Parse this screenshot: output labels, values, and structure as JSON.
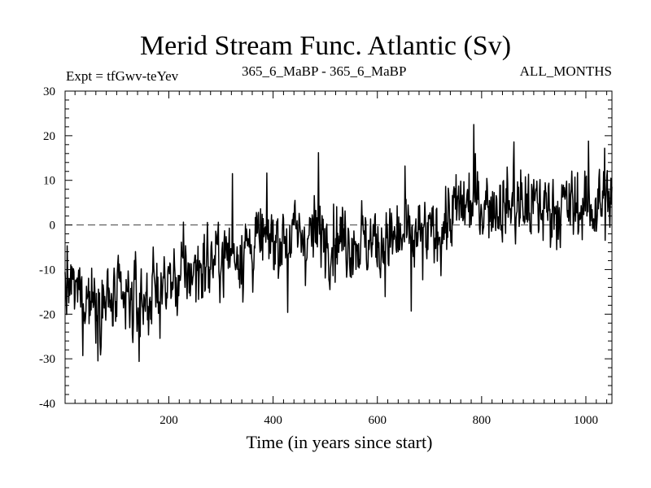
{
  "chart_data": {
    "type": "line",
    "title": "Merid Stream Func. Atlantic (Sv)",
    "subtitle_left": "Expt = tfGwv-teYev",
    "subtitle_center": "365_6_MaBP - 365_6_MaBP",
    "subtitle_right": "ALL_MONTHS",
    "xlabel": "Time (in years since start)",
    "ylabel": "",
    "xlim": [
      1,
      1050
    ],
    "ylim": [
      -40,
      30
    ],
    "xticks": [
      200,
      400,
      600,
      800,
      1000
    ],
    "yticks": [
      30,
      20,
      10,
      0,
      -10,
      -20,
      -30,
      -40
    ],
    "reference_line": {
      "y": 0,
      "style": "dashed"
    },
    "series": [
      {
        "name": "Merid Stream Func. Atlantic",
        "trend_x": [
          1,
          100,
          150,
          200,
          300,
          400,
          500,
          600,
          700,
          760,
          800,
          900,
          1000,
          1050
        ],
        "trend_y": [
          -14,
          -18,
          -17,
          -13,
          -7,
          -3,
          -2,
          -4,
          -3,
          4,
          5,
          4,
          4,
          5
        ],
        "noise_sd": 4.3,
        "n_points": 1050,
        "peaks": [
          {
            "x": 785,
            "y": 22.5
          },
          {
            "x": 862,
            "y": 18.6
          },
          {
            "x": 1005,
            "y": 18.8
          },
          {
            "x": 1036,
            "y": 17.2
          },
          {
            "x": 322,
            "y": 11.5
          },
          {
            "x": 487,
            "y": 16.2
          },
          {
            "x": 653,
            "y": 13.2
          },
          {
            "x": 143,
            "y": -30.6
          },
          {
            "x": 35,
            "y": -29.3
          },
          {
            "x": 665,
            "y": -19.3
          },
          {
            "x": 428,
            "y": -19.6
          }
        ]
      }
    ]
  }
}
